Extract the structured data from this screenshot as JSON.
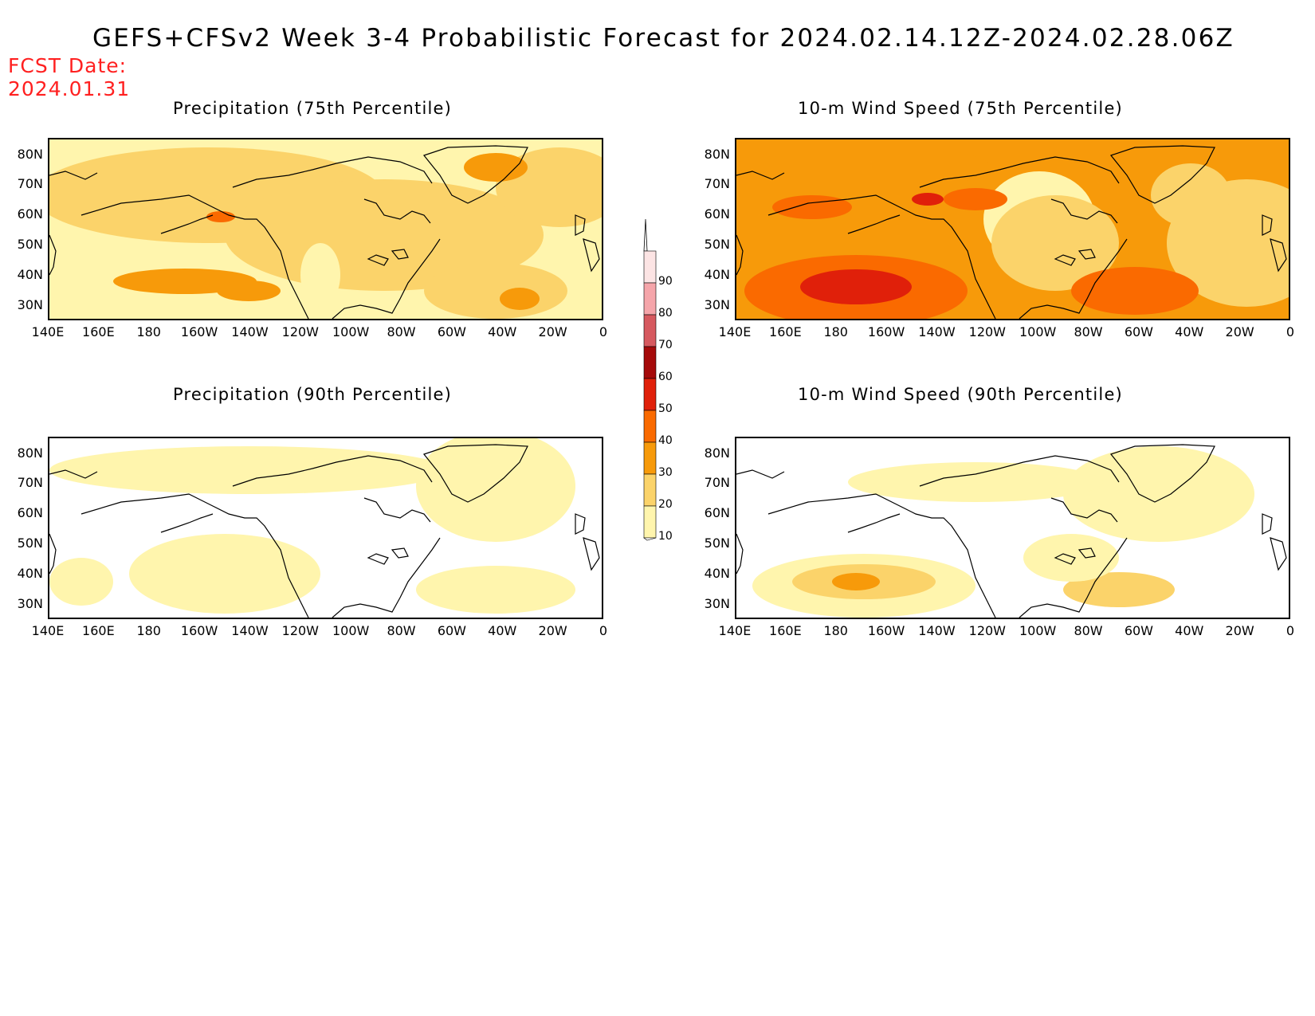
{
  "title": "GEFS+CFSv2 Week 3-4 Probabilistic Forecast for 2024.02.14.12Z-2024.02.28.06Z",
  "fcst_date": {
    "label": "FCST Date:",
    "value": "2024.01.31"
  },
  "panels": [
    {
      "id": "precip75",
      "title": "Precipitation (75th Percentile)"
    },
    {
      "id": "wind75",
      "title": "10-m Wind Speed (75th Percentile)"
    },
    {
      "id": "precip90",
      "title": "Precipitation (90th Percentile)"
    },
    {
      "id": "wind90",
      "title": "10-m Wind Speed (90th Percentile)"
    }
  ],
  "lat_labels": [
    "80N",
    "70N",
    "60N",
    "50N",
    "40N",
    "30N"
  ],
  "lon_labels": [
    "140E",
    "160E",
    "180",
    "160W",
    "140W",
    "120W",
    "100W",
    "80W",
    "60W",
    "40W",
    "20W",
    "0"
  ],
  "colorbar": {
    "labels": [
      "90",
      "80",
      "70",
      "60",
      "50",
      "40",
      "30",
      "20",
      "10"
    ],
    "colors": [
      "#fce4e4",
      "#f5a5aa",
      "#d6595f",
      "#a50a0a",
      "#e0200a",
      "#fa6a00",
      "#f79a0a",
      "#fbd36a",
      "#fff5ad"
    ]
  },
  "palette": {
    "white": "#ffffff",
    "c10": "#fff5ad",
    "c20": "#fbd36a",
    "c30": "#f79a0a",
    "c40": "#fa6a00",
    "c50": "#e0200a"
  }
}
